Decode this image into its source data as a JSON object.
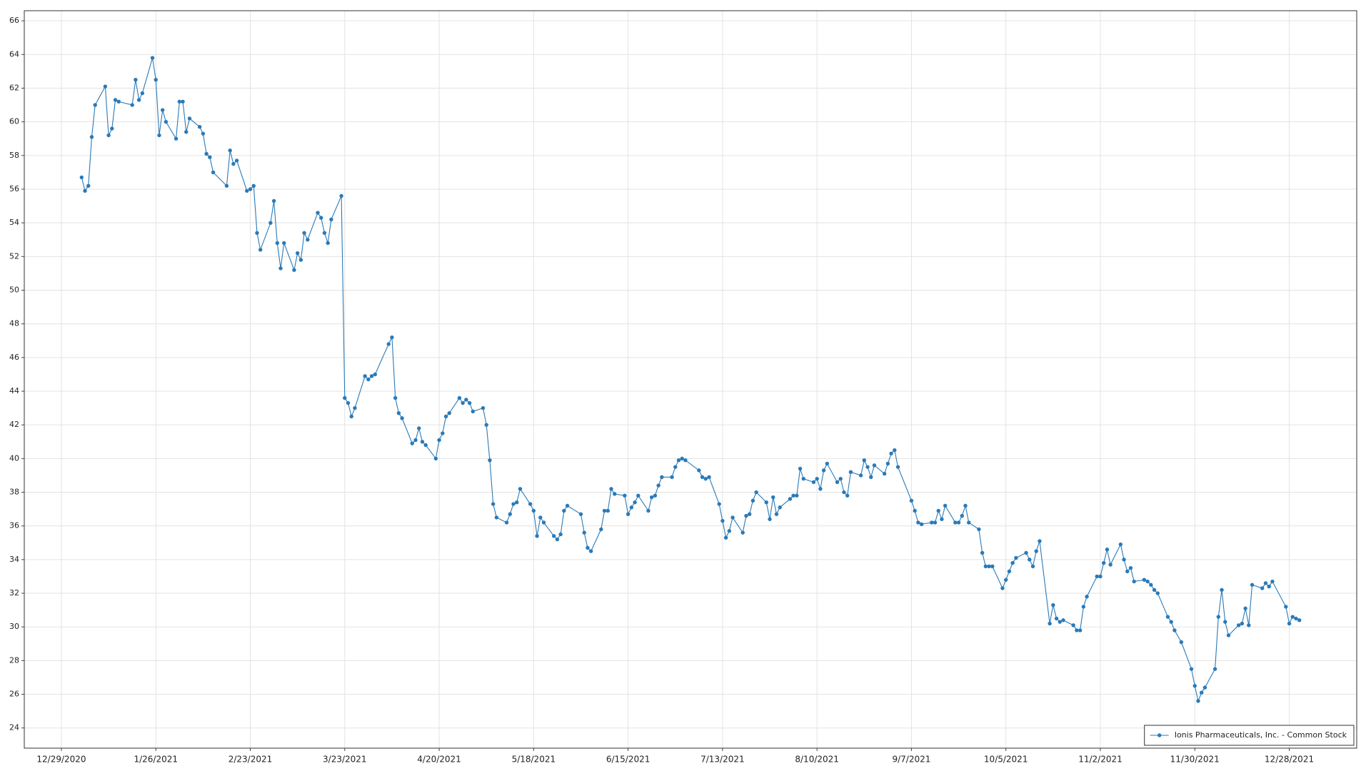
{
  "chart_data": {
    "type": "line",
    "grid": true,
    "legend": "lower right",
    "xlim": [
      "12/18/2020",
      "1/17/2022"
    ],
    "xticks": [
      "12/29/2020",
      "1/26/2021",
      "2/23/2021",
      "3/23/2021",
      "4/20/2021",
      "5/18/2021",
      "6/15/2021",
      "7/13/2021",
      "8/10/2021",
      "9/7/2021",
      "10/5/2021",
      "11/2/2021",
      "11/30/2021",
      "12/28/2021"
    ],
    "ylim": [
      22.8,
      66.6
    ],
    "yticks": [
      24,
      26,
      28,
      30,
      32,
      34,
      36,
      38,
      40,
      42,
      44,
      46,
      48,
      50,
      52,
      54,
      56,
      58,
      60,
      62,
      64,
      66
    ],
    "x": [
      "1/4/2021",
      "1/5/2021",
      "1/6/2021",
      "1/7/2021",
      "1/8/2021",
      "1/11/2021",
      "1/12/2021",
      "1/13/2021",
      "1/14/2021",
      "1/15/2021",
      "1/19/2021",
      "1/20/2021",
      "1/21/2021",
      "1/22/2021",
      "1/25/2021",
      "1/26/2021",
      "1/27/2021",
      "1/28/2021",
      "1/29/2021",
      "2/1/2021",
      "2/2/2021",
      "2/3/2021",
      "2/4/2021",
      "2/5/2021",
      "2/8/2021",
      "2/9/2021",
      "2/10/2021",
      "2/11/2021",
      "2/12/2021",
      "2/16/2021",
      "2/17/2021",
      "2/18/2021",
      "2/19/2021",
      "2/22/2021",
      "2/23/2021",
      "2/24/2021",
      "2/25/2021",
      "2/26/2021",
      "3/1/2021",
      "3/2/2021",
      "3/3/2021",
      "3/4/2021",
      "3/5/2021",
      "3/8/2021",
      "3/9/2021",
      "3/10/2021",
      "3/11/2021",
      "3/12/2021",
      "3/15/2021",
      "3/16/2021",
      "3/17/2021",
      "3/18/2021",
      "3/19/2021",
      "3/22/2021",
      "3/23/2021",
      "3/24/2021",
      "3/25/2021",
      "3/26/2021",
      "3/29/2021",
      "3/30/2021",
      "3/31/2021",
      "4/1/2021",
      "4/5/2021",
      "4/6/2021",
      "4/7/2021",
      "4/8/2021",
      "4/9/2021",
      "4/12/2021",
      "4/13/2021",
      "4/14/2021",
      "4/15/2021",
      "4/16/2021",
      "4/19/2021",
      "4/20/2021",
      "4/21/2021",
      "4/22/2021",
      "4/23/2021",
      "4/26/2021",
      "4/27/2021",
      "4/28/2021",
      "4/29/2021",
      "4/30/2021",
      "5/3/2021",
      "5/4/2021",
      "5/5/2021",
      "5/6/2021",
      "5/7/2021",
      "5/10/2021",
      "5/11/2021",
      "5/12/2021",
      "5/13/2021",
      "5/14/2021",
      "5/17/2021",
      "5/18/2021",
      "5/19/2021",
      "5/20/2021",
      "5/21/2021",
      "5/24/2021",
      "5/25/2021",
      "5/26/2021",
      "5/27/2021",
      "5/28/2021",
      "6/1/2021",
      "6/2/2021",
      "6/3/2021",
      "6/4/2021",
      "6/7/2021",
      "6/8/2021",
      "6/9/2021",
      "6/10/2021",
      "6/11/2021",
      "6/14/2021",
      "6/15/2021",
      "6/16/2021",
      "6/17/2021",
      "6/18/2021",
      "6/21/2021",
      "6/22/2021",
      "6/23/2021",
      "6/24/2021",
      "6/25/2021",
      "6/28/2021",
      "6/29/2021",
      "6/30/2021",
      "7/1/2021",
      "7/2/2021",
      "7/6/2021",
      "7/7/2021",
      "7/8/2021",
      "7/9/2021",
      "7/12/2021",
      "7/13/2021",
      "7/14/2021",
      "7/15/2021",
      "7/16/2021",
      "7/19/2021",
      "7/20/2021",
      "7/21/2021",
      "7/22/2021",
      "7/23/2021",
      "7/26/2021",
      "7/27/2021",
      "7/28/2021",
      "7/29/2021",
      "7/30/2021",
      "8/2/2021",
      "8/3/2021",
      "8/4/2021",
      "8/5/2021",
      "8/6/2021",
      "8/9/2021",
      "8/10/2021",
      "8/11/2021",
      "8/12/2021",
      "8/13/2021",
      "8/16/2021",
      "8/17/2021",
      "8/18/2021",
      "8/19/2021",
      "8/20/2021",
      "8/23/2021",
      "8/24/2021",
      "8/25/2021",
      "8/26/2021",
      "8/27/2021",
      "8/30/2021",
      "8/31/2021",
      "9/1/2021",
      "9/2/2021",
      "9/3/2021",
      "9/7/2021",
      "9/8/2021",
      "9/9/2021",
      "9/10/2021",
      "9/13/2021",
      "9/14/2021",
      "9/15/2021",
      "9/16/2021",
      "9/17/2021",
      "9/20/2021",
      "9/21/2021",
      "9/22/2021",
      "9/23/2021",
      "9/24/2021",
      "9/27/2021",
      "9/28/2021",
      "9/29/2021",
      "9/30/2021",
      "10/1/2021",
      "10/4/2021",
      "10/5/2021",
      "10/6/2021",
      "10/7/2021",
      "10/8/2021",
      "10/11/2021",
      "10/12/2021",
      "10/13/2021",
      "10/14/2021",
      "10/15/2021",
      "10/18/2021",
      "10/19/2021",
      "10/20/2021",
      "10/21/2021",
      "10/22/2021",
      "10/25/2021",
      "10/26/2021",
      "10/27/2021",
      "10/28/2021",
      "10/29/2021",
      "11/1/2021",
      "11/2/2021",
      "11/3/2021",
      "11/4/2021",
      "11/5/2021",
      "11/8/2021",
      "11/9/2021",
      "11/10/2021",
      "11/11/2021",
      "11/12/2021",
      "11/15/2021",
      "11/16/2021",
      "11/17/2021",
      "11/18/2021",
      "11/19/2021",
      "11/22/2021",
      "11/23/2021",
      "11/24/2021",
      "11/26/2021",
      "11/29/2021",
      "11/30/2021",
      "12/1/2021",
      "12/2/2021",
      "12/3/2021",
      "12/6/2021",
      "12/7/2021",
      "12/8/2021",
      "12/9/2021",
      "12/10/2021",
      "12/13/2021",
      "12/14/2021",
      "12/15/2021",
      "12/16/2021",
      "12/17/2021",
      "12/20/2021",
      "12/21/2021",
      "12/22/2021",
      "12/23/2021",
      "12/27/2021",
      "12/28/2021",
      "12/29/2021",
      "12/30/2021",
      "12/31/2021"
    ],
    "series": [
      {
        "name": "Ionis Pharmaceuticals, Inc. - Common Stock",
        "color": "#2a7ab8",
        "values": [
          56.7,
          55.9,
          56.2,
          59.1,
          61.0,
          62.1,
          59.2,
          59.6,
          61.3,
          61.2,
          61.0,
          62.5,
          61.3,
          61.7,
          63.8,
          62.5,
          59.2,
          60.7,
          60.0,
          59.0,
          61.2,
          61.2,
          59.4,
          60.2,
          59.7,
          59.3,
          58.1,
          57.9,
          57.0,
          56.2,
          58.3,
          57.5,
          57.7,
          55.9,
          56.0,
          56.2,
          53.4,
          52.4,
          54.0,
          55.3,
          52.8,
          51.3,
          52.8,
          51.2,
          52.2,
          51.8,
          53.4,
          53.0,
          54.6,
          54.3,
          53.4,
          52.8,
          54.2,
          55.6,
          43.6,
          43.3,
          42.5,
          43.0,
          44.9,
          44.7,
          44.9,
          45.0,
          46.8,
          47.2,
          43.6,
          42.7,
          42.4,
          40.9,
          41.1,
          41.8,
          41.0,
          40.8,
          40.0,
          41.1,
          41.5,
          42.5,
          42.7,
          43.6,
          43.3,
          43.5,
          43.3,
          42.8,
          43.0,
          42.0,
          39.9,
          37.3,
          36.5,
          36.2,
          36.7,
          37.3,
          37.4,
          38.2,
          37.3,
          36.9,
          35.4,
          36.5,
          36.2,
          35.4,
          35.2,
          35.5,
          36.9,
          37.2,
          36.7,
          35.6,
          34.7,
          34.5,
          35.8,
          36.9,
          36.9,
          38.2,
          37.9,
          37.8,
          36.7,
          37.1,
          37.4,
          37.8,
          36.9,
          37.7,
          37.8,
          38.4,
          38.9,
          38.9,
          39.5,
          39.9,
          40.0,
          39.9,
          39.3,
          38.9,
          38.8,
          38.9,
          37.3,
          36.3,
          35.3,
          35.7,
          36.5,
          35.6,
          36.6,
          36.7,
          37.5,
          38.0,
          37.4,
          36.4,
          37.7,
          36.7,
          37.1,
          37.6,
          37.8,
          37.8,
          39.4,
          38.8,
          38.6,
          38.8,
          38.2,
          39.3,
          39.7,
          38.6,
          38.8,
          38.0,
          37.8,
          39.2,
          39.0,
          39.9,
          39.5,
          38.9,
          39.6,
          39.1,
          39.7,
          40.3,
          40.5,
          39.5,
          37.5,
          36.9,
          36.2,
          36.1,
          36.2,
          36.2,
          36.9,
          36.4,
          37.2,
          36.2,
          36.2,
          36.6,
          37.2,
          36.2,
          35.8,
          34.4,
          33.6,
          33.6,
          33.6,
          32.3,
          32.8,
          33.3,
          33.8,
          34.1,
          34.4,
          34.0,
          33.6,
          34.5,
          35.1,
          30.2,
          31.3,
          30.5,
          30.3,
          30.4,
          30.1,
          29.8,
          29.8,
          31.2,
          31.8,
          33.0,
          33.0,
          33.8,
          34.6,
          33.7,
          34.9,
          34.0,
          33.3,
          33.5,
          32.7,
          32.8,
          32.7,
          32.5,
          32.2,
          32.0,
          30.6,
          30.3,
          29.8,
          29.1,
          27.5,
          26.5,
          25.6,
          26.1,
          26.4,
          27.5,
          30.6,
          32.2,
          30.3,
          29.5,
          30.1,
          30.2,
          31.1,
          30.1,
          32.5,
          32.3,
          32.6,
          32.4,
          32.7,
          31.2,
          30.2,
          30.6,
          30.5,
          30.4
        ]
      }
    ]
  }
}
